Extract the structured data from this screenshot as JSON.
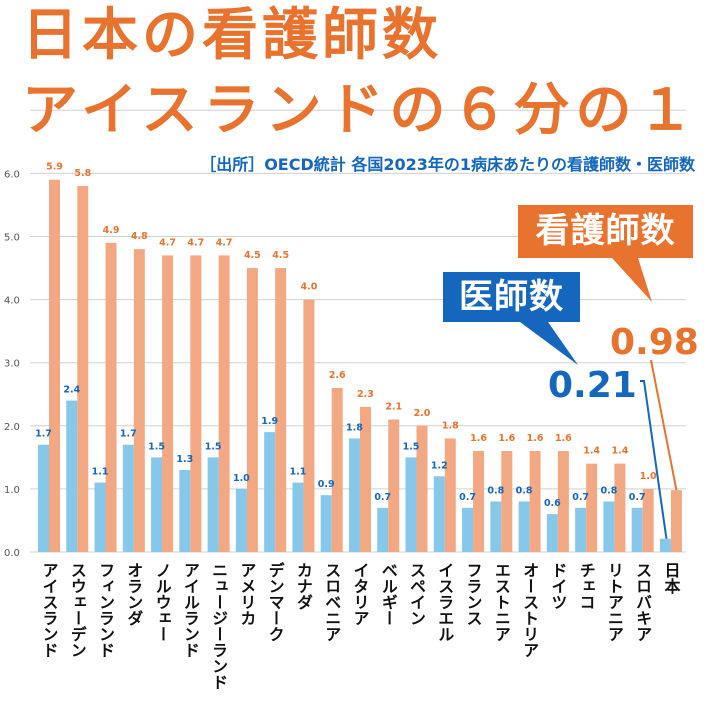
{
  "title": {
    "line1": "日本の看護師数",
    "line2": "アイスランドの６分の１"
  },
  "subtitle": "［出所］OECD統計 各国2023年の1病床あたりの看護師数・医師数",
  "callouts": {
    "nurse_label": "看護師数",
    "doctor_label": "医師数",
    "japan_nurse_value": "0.98",
    "japan_doctor_value": "0.21"
  },
  "colors": {
    "title": "#E8732E",
    "nurse_bar": "#F2A883",
    "doctor_bar": "#86C8EA",
    "nurse_label": "#E8732E",
    "doctor_label": "#1467BC",
    "grid": "#D0D0D0",
    "axis_text": "#555555"
  },
  "chart_data": {
    "type": "bar",
    "title": "日本の看護師数 アイスランドの６分の１",
    "subtitle": "［出所］OECD統計 各国2023年の1病床あたりの看護師数・医師数",
    "xlabel": "",
    "ylabel": "",
    "ylim": [
      0,
      7
    ],
    "yticks": [
      "0.0",
      "1.0",
      "2.0",
      "3.0",
      "4.0",
      "5.0",
      "6.0"
    ],
    "grid": true,
    "legend": "callouts top-right",
    "categories": [
      "アイスランド",
      "スウェーデン",
      "フィンランド",
      "オランダ",
      "ノルウェー",
      "アイルランド",
      "ニュージーランド",
      "アメリカ",
      "デンマーク",
      "カナダ",
      "スロベニア",
      "イタリア",
      "ベルギー",
      "スペイン",
      "イスラエル",
      "フランス",
      "エストニア",
      "オーストリア",
      "ドイツ",
      "チェコ",
      "リトアニア",
      "スロバキア",
      "日本"
    ],
    "series": [
      {
        "name": "医師数",
        "values": [
          1.7,
          2.4,
          1.1,
          1.7,
          1.5,
          1.3,
          1.5,
          1.0,
          1.9,
          1.1,
          0.9,
          1.8,
          0.7,
          1.5,
          1.2,
          0.7,
          0.8,
          0.8,
          0.6,
          0.7,
          0.8,
          0.7,
          0.21
        ],
        "labels": [
          "1.7",
          "2.4",
          "1.1",
          "1.7",
          "1.5",
          "1.3",
          "1.5",
          "1.0",
          "1.9",
          "1.1",
          "0.9",
          "1.8",
          "0.7",
          "1.5",
          "1.2",
          "0.7",
          "0.8",
          "0.8",
          "0.6",
          "0.7",
          "0.8",
          "0.7",
          ""
        ]
      },
      {
        "name": "看護師数",
        "values": [
          5.9,
          5.8,
          4.9,
          4.8,
          4.7,
          4.7,
          4.7,
          4.5,
          4.5,
          4.0,
          2.6,
          2.3,
          2.1,
          2.0,
          1.8,
          1.6,
          1.6,
          1.6,
          1.6,
          1.4,
          1.4,
          1.0,
          0.98
        ],
        "labels": [
          "5.9",
          "5.8",
          "4.9",
          "4.8",
          "4.7",
          "4.7",
          "4.7",
          "4.5",
          "4.5",
          "4.0",
          "2.6",
          "2.3",
          "2.1",
          "2.0",
          "1.8",
          "1.6",
          "1.6",
          "1.6",
          "1.6",
          "1.4",
          "1.4",
          "1.0",
          ""
        ]
      }
    ]
  }
}
